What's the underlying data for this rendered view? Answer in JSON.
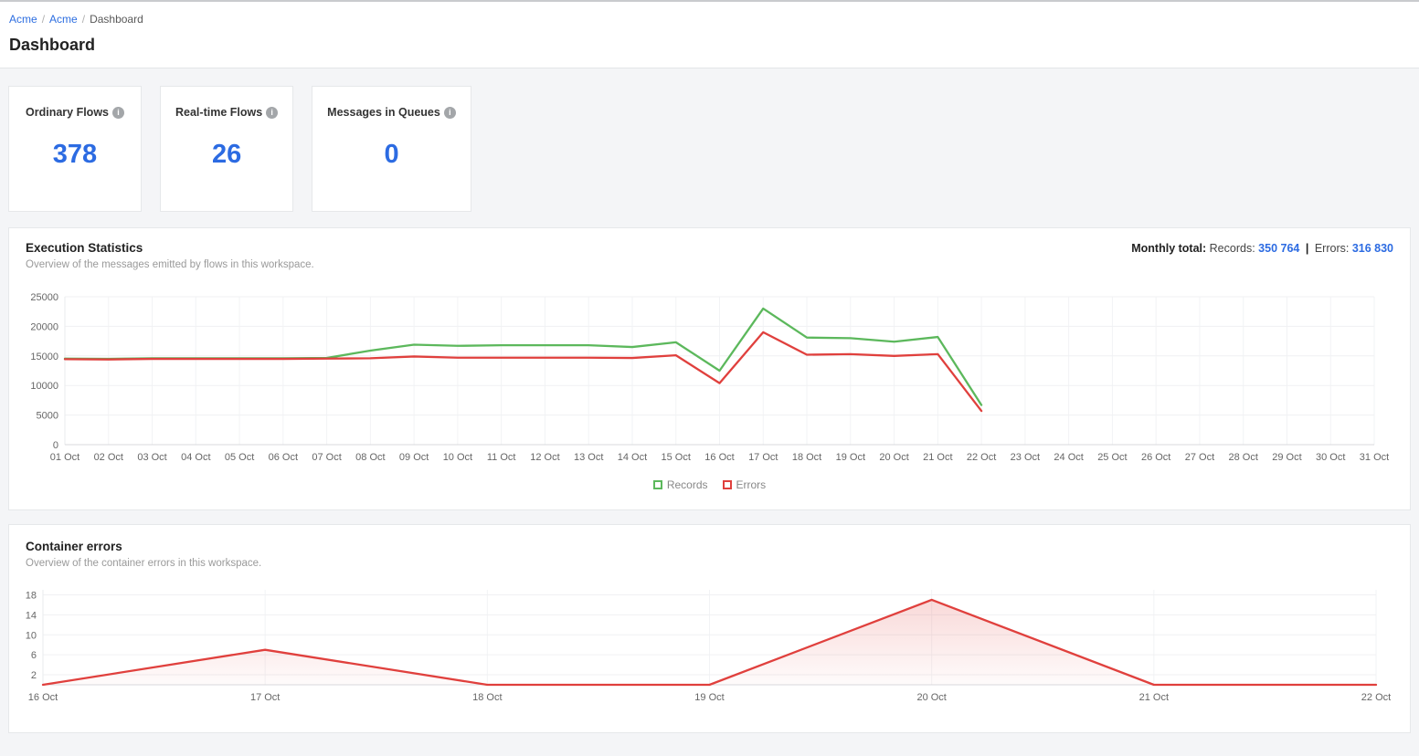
{
  "breadcrumb": {
    "separator": "/",
    "items": [
      {
        "label": "Acme"
      },
      {
        "label": "Acme"
      },
      {
        "label": "Dashboard"
      }
    ]
  },
  "page_title": "Dashboard",
  "stat_cards": [
    {
      "title": "Ordinary Flows",
      "value": "378",
      "icon": "info-icon",
      "icon_glyph": "i"
    },
    {
      "title": "Real-time Flows",
      "value": "26",
      "icon": "info-icon",
      "icon_glyph": "i"
    },
    {
      "title": "Messages in Queues",
      "value": "0",
      "icon": "info-icon",
      "icon_glyph": "i"
    }
  ],
  "execution_statistics": {
    "title": "Execution Statistics",
    "subtitle": "Overview of the messages emitted by flows in this workspace.",
    "monthly_total_label": "Monthly total:",
    "records_label": "Records:",
    "records_value": "350 764",
    "separator": "|",
    "errors_label": "Errors:",
    "errors_value": "316 830"
  },
  "container_errors": {
    "title": "Container errors",
    "subtitle": "Overview of the container errors in this workspace."
  },
  "colors": {
    "accent_blue": "#2c6be2",
    "link_blue": "#2d6ee0",
    "records_green": "#5cb85c",
    "errors_red": "#e0403d",
    "page_background": "#f4f5f7",
    "grid_line": "#f0f1f3",
    "axis_line": "#d8dadc",
    "axis_text": "#666666"
  },
  "chart_data": [
    {
      "id": "execution-statistics",
      "type": "line",
      "title": "Execution Statistics",
      "xlabel": "",
      "ylabel": "",
      "ylim": [
        0,
        25000
      ],
      "yticks": [
        0,
        5000,
        10000,
        15000,
        20000,
        25000
      ],
      "grid": true,
      "legend_position": "bottom",
      "categories": [
        "01 Oct",
        "02 Oct",
        "03 Oct",
        "04 Oct",
        "05 Oct",
        "06 Oct",
        "07 Oct",
        "08 Oct",
        "09 Oct",
        "10 Oct",
        "11 Oct",
        "12 Oct",
        "13 Oct",
        "14 Oct",
        "15 Oct",
        "16 Oct",
        "17 Oct",
        "18 Oct",
        "19 Oct",
        "20 Oct",
        "21 Oct",
        "22 Oct",
        "23 Oct",
        "24 Oct",
        "25 Oct",
        "26 Oct",
        "27 Oct",
        "28 Oct",
        "29 Oct",
        "30 Oct",
        "31 Oct"
      ],
      "series": [
        {
          "name": "Records",
          "color": "#5cb85c",
          "values": [
            14550,
            14500,
            14600,
            14600,
            14600,
            14600,
            14650,
            15900,
            16900,
            16700,
            16800,
            16800,
            16800,
            16500,
            17300,
            12500,
            23000,
            18100,
            18000,
            17400,
            18200,
            6700,
            null,
            null,
            null,
            null,
            null,
            null,
            null,
            null,
            null
          ]
        },
        {
          "name": "Errors",
          "color": "#e0403d",
          "values": [
            14450,
            14400,
            14500,
            14500,
            14500,
            14500,
            14550,
            14600,
            14900,
            14700,
            14700,
            14700,
            14700,
            14650,
            15100,
            10400,
            19000,
            15200,
            15300,
            15000,
            15300,
            5700,
            null,
            null,
            null,
            null,
            null,
            null,
            null,
            null,
            null
          ]
        }
      ]
    },
    {
      "id": "container-errors",
      "type": "area",
      "title": "Container errors",
      "xlabel": "",
      "ylabel": "",
      "ylim": [
        0,
        19
      ],
      "yticks": [
        2,
        6,
        10,
        14,
        18
      ],
      "grid": true,
      "legend_position": "none",
      "categories": [
        "16 Oct",
        "17 Oct",
        "18 Oct",
        "19 Oct",
        "20 Oct",
        "21 Oct",
        "22 Oct"
      ],
      "series": [
        {
          "name": "Container errors",
          "color": "#e0403d",
          "fill": true,
          "values": [
            0,
            7,
            0,
            0,
            17,
            0,
            0
          ]
        }
      ]
    }
  ]
}
